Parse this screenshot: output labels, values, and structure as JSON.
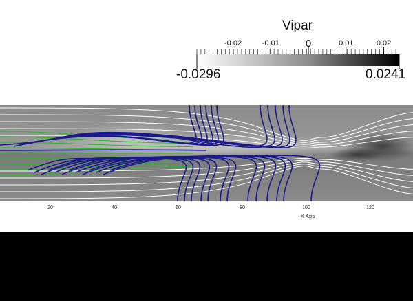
{
  "colorbar": {
    "title": "Vipar",
    "min_label": "-0.0296",
    "max_label": "0.0241",
    "range": [
      -0.0296,
      0.0241
    ],
    "tick_labels": [
      "-0.02",
      "-0.01",
      "0",
      "0.01",
      "0.02"
    ],
    "tick_values": [
      -0.02,
      -0.01,
      0,
      0.01,
      0.02
    ],
    "gradient_colors": [
      "#ffffff",
      "#000000"
    ]
  },
  "axis": {
    "title": "X-Axis",
    "tick_labels": [
      "20",
      "40",
      "60",
      "80",
      "100",
      "120"
    ],
    "tick_values": [
      20,
      40,
      60,
      80,
      100,
      120
    ],
    "range": [
      5,
      133
    ]
  },
  "colors": {
    "background": "#ffffff",
    "field_base": "#8a8a8a",
    "streamline_white": "#ffffff",
    "streamline_green": "#22bb22",
    "streamline_blue": "#1a1a8c",
    "bottom_band": "#000000"
  }
}
